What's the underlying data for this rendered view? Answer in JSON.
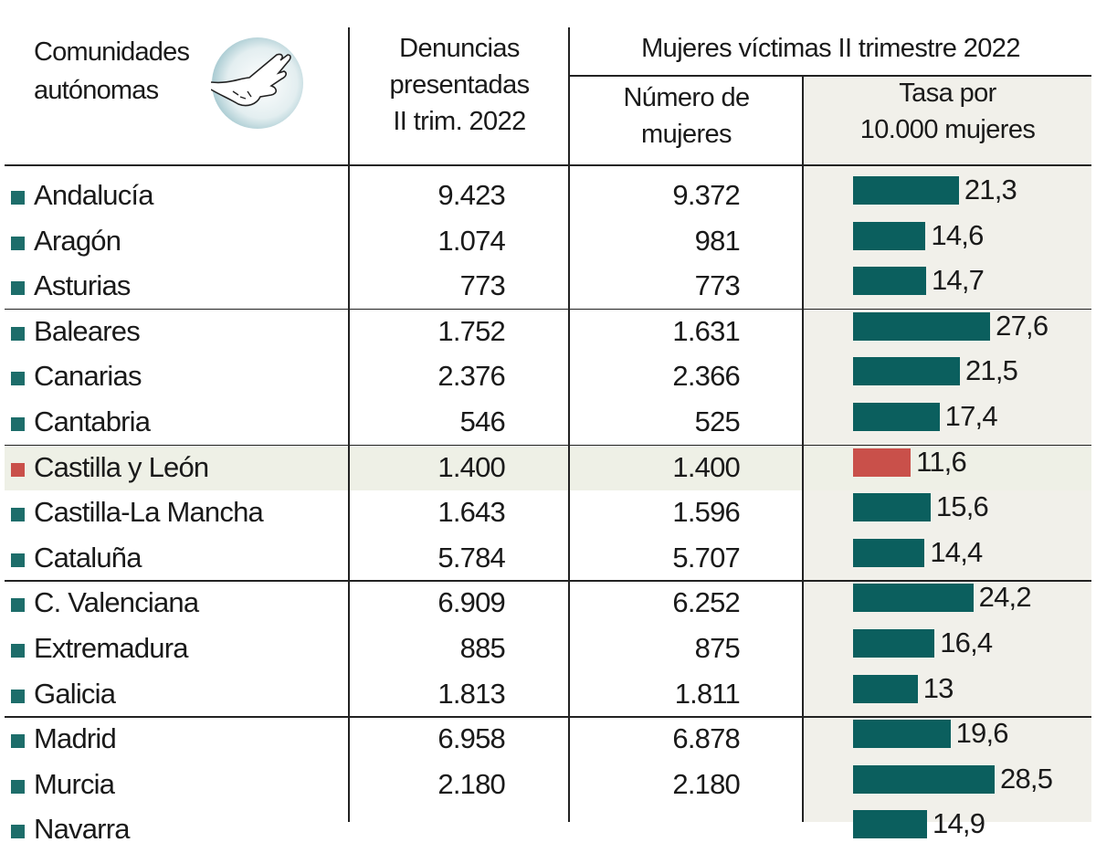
{
  "header": {
    "col_name": [
      "Comunidades",
      "autónomas"
    ],
    "col_denuncias": [
      "Denuncias",
      "presentadas",
      "II trim. 2022"
    ],
    "group_title": "Mujeres víctimas II trimestre 2022",
    "col_numero": [
      "Número de",
      "mujeres"
    ],
    "col_tasa": [
      "Tasa por",
      "10.000 mujeres"
    ],
    "icon": "hand-grabbing-wrist-icon"
  },
  "colors": {
    "bar": "#0b5f5e",
    "highlight_bar": "#c9504a",
    "square": "#1d6d6a",
    "highlight_square": "#c9504a"
  },
  "chart_data": {
    "type": "table",
    "title": "Mujeres víctimas II trimestre 2022",
    "columns": [
      "Comunidades autónomas",
      "Denuncias presentadas II trim. 2022",
      "Número de mujeres",
      "Tasa por 10.000 mujeres"
    ],
    "highlight": "Castilla y León",
    "rows": [
      {
        "name": "Andalucía",
        "denuncias": "9.423",
        "mujeres": "9.372",
        "tasa": 21.3,
        "tasa_label": "21,3"
      },
      {
        "name": "Aragón",
        "denuncias": "1.074",
        "mujeres": "981",
        "tasa": 14.6,
        "tasa_label": "14,6"
      },
      {
        "name": "Asturias",
        "denuncias": "773",
        "mujeres": "773",
        "tasa": 14.7,
        "tasa_label": "14,7"
      },
      {
        "name": "Baleares",
        "denuncias": "1.752",
        "mujeres": "1.631",
        "tasa": 27.6,
        "tasa_label": "27,6"
      },
      {
        "name": "Canarias",
        "denuncias": "2.376",
        "mujeres": "2.366",
        "tasa": 21.5,
        "tasa_label": "21,5"
      },
      {
        "name": "Cantabria",
        "denuncias": "546",
        "mujeres": "525",
        "tasa": 17.4,
        "tasa_label": "17,4"
      },
      {
        "name": "Castilla y León",
        "denuncias": "1.400",
        "mujeres": "1.400",
        "tasa": 11.6,
        "tasa_label": "11,6",
        "highlight": true
      },
      {
        "name": "Castilla-La Mancha",
        "denuncias": "1.643",
        "mujeres": "1.596",
        "tasa": 15.6,
        "tasa_label": "15,6"
      },
      {
        "name": "Cataluña",
        "denuncias": "5.784",
        "mujeres": "5.707",
        "tasa": 14.4,
        "tasa_label": "14,4"
      },
      {
        "name": "C. Valenciana",
        "denuncias": "6.909",
        "mujeres": "6.252",
        "tasa": 24.2,
        "tasa_label": "24,2"
      },
      {
        "name": "Extremadura",
        "denuncias": "885",
        "mujeres": "875",
        "tasa": 16.4,
        "tasa_label": "16,4"
      },
      {
        "name": "Galicia",
        "denuncias": "1.813",
        "mujeres": "1.811",
        "tasa": 13,
        "tasa_label": "13"
      },
      {
        "name": "Madrid",
        "denuncias": "6.958",
        "mujeres": "6.878",
        "tasa": 19.6,
        "tasa_label": "19,6"
      },
      {
        "name": "Murcia",
        "denuncias": "2.180",
        "mujeres": "2.180",
        "tasa": 28.5,
        "tasa_label": "28,5"
      },
      {
        "name": "Navarra",
        "denuncias": "",
        "mujeres": "",
        "tasa": 14.9,
        "tasa_label": "14,9"
      }
    ],
    "group_breaks_after": [
      2,
      5,
      8,
      11
    ]
  }
}
